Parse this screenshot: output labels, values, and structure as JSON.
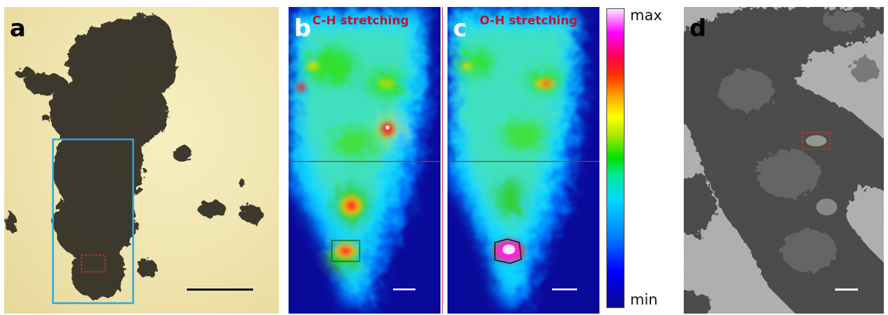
{
  "figure": {
    "panels": [
      {
        "letter": "a",
        "kind": "optical micrograph",
        "letter_color": "#000000"
      },
      {
        "letter": "b",
        "kind": "IR chemical map",
        "title": "C-H stretching",
        "letter_color": "#ffffff",
        "title_color": "#c8102e"
      },
      {
        "letter": "c",
        "kind": "IR chemical map",
        "title": "O-H stretching",
        "letter_color": "#ffffff",
        "title_color": "#c8102e"
      },
      {
        "letter": "d",
        "kind": "SEM micrograph",
        "letter_color": "#000000"
      }
    ],
    "colorbar": {
      "max_label": "max",
      "min_label": "min"
    },
    "colors": {
      "roi_box_a": "#29a8e0",
      "roi_marker": "#c0392b",
      "crosshair": "#d21e1e",
      "scalebar_a": "#000000",
      "scalebar_ir": "#ffffff",
      "scalebar_d": "#ffffff"
    }
  }
}
